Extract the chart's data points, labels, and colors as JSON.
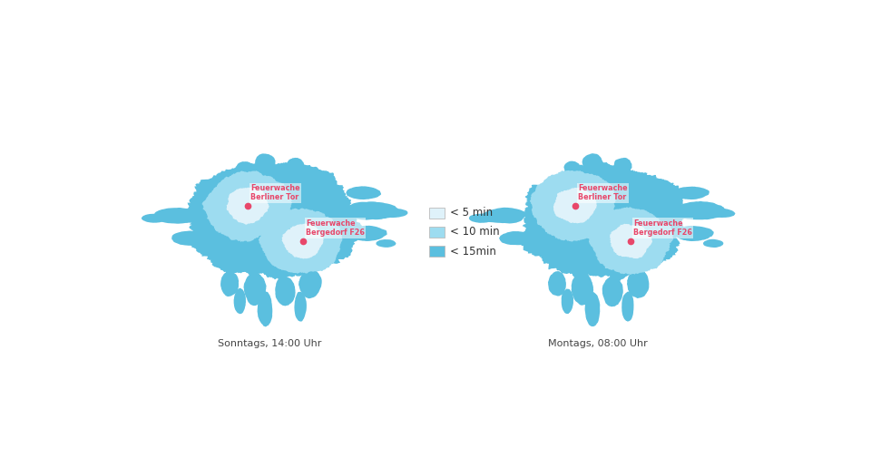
{
  "bg_color": "#ffffff",
  "color_5min": "#dff2fa",
  "color_10min": "#9ddcf0",
  "color_15min": "#5bbfdf",
  "label_5min": "< 5 min",
  "label_10min": "< 10 min",
  "label_15min": "< 15min",
  "label_left": "Sonntags, 14:00 Uhr",
  "label_right": "Montags, 08:00 Uhr",
  "station1_label_line1": "Feuerwache",
  "station1_label_line2": "Berliner Tor",
  "station2_label_line1": "Feuerwache",
  "station2_label_line2": "Bergedorf F26",
  "station_dot_color": "#e8476a",
  "station_label_color": "#e8476a",
  "figsize": [
    9.6,
    5.04
  ]
}
